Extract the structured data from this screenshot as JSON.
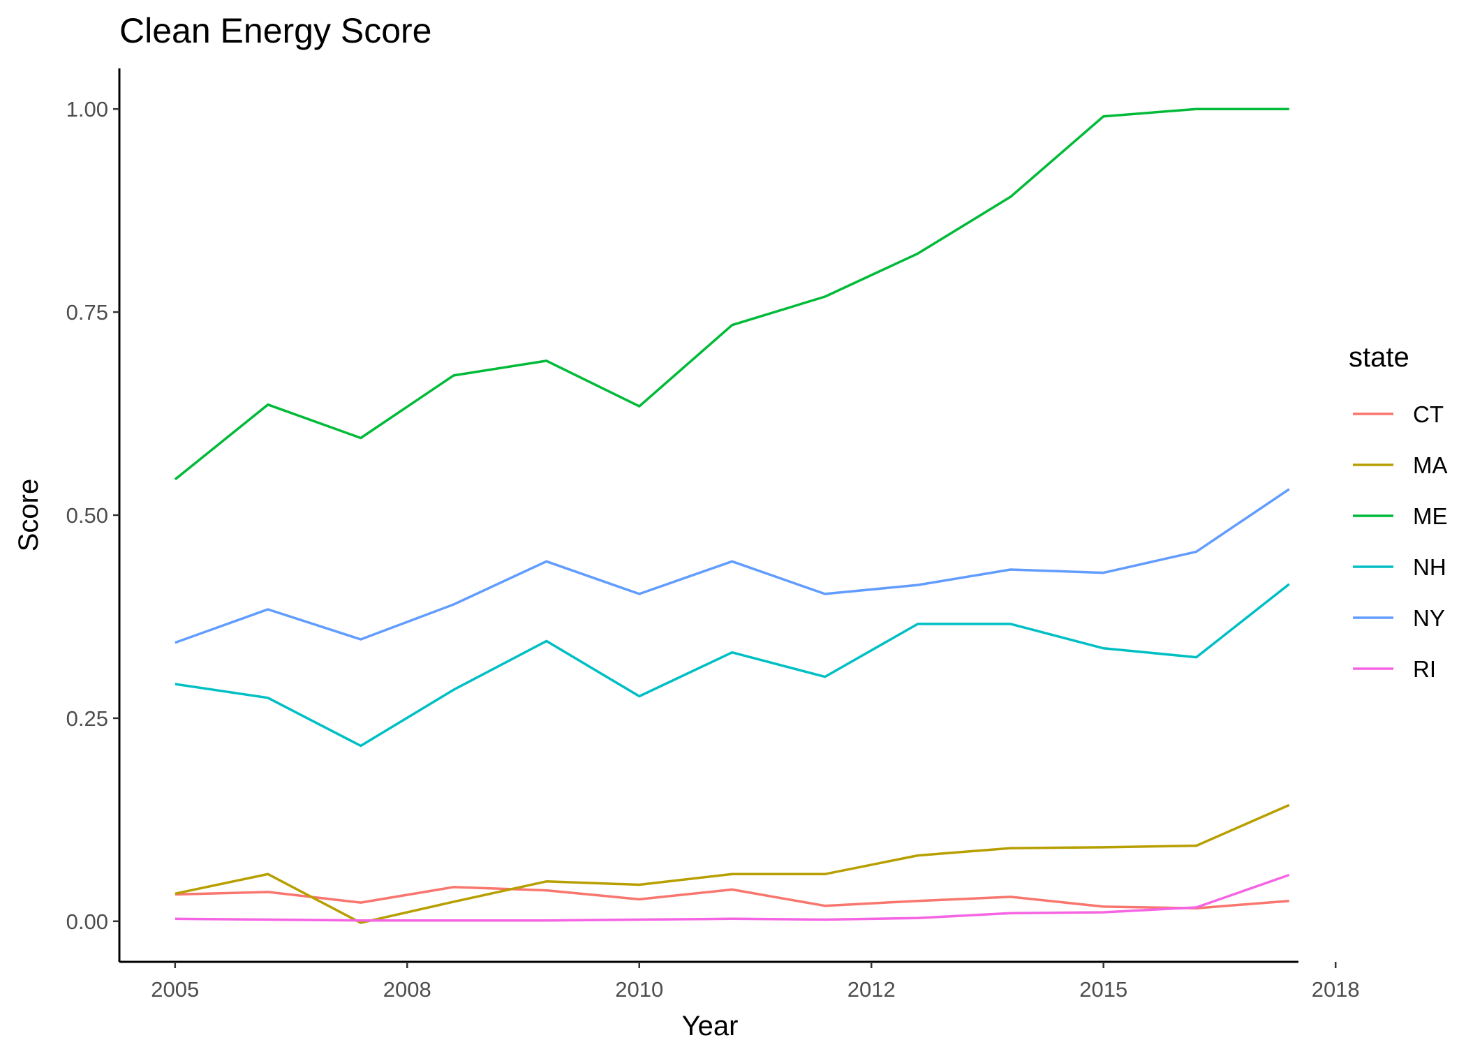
{
  "chart_data": {
    "type": "line",
    "title": "Clean Energy Score",
    "xlabel": "Year",
    "ylabel": "Score",
    "x": [
      2005,
      2006,
      2007,
      2008,
      2009,
      2010,
      2011,
      2012,
      2013,
      2014,
      2015,
      2016,
      2017
    ],
    "xlim": [
      2004.4,
      2017.1
    ],
    "ylim": [
      -0.05,
      1.05
    ],
    "xticks": [
      {
        "value": 2005,
        "label": "2005"
      },
      {
        "value": 2007.5,
        "label": "2008"
      },
      {
        "value": 2010,
        "label": "2010"
      },
      {
        "value": 2012.5,
        "label": "2012"
      },
      {
        "value": 2015,
        "label": "2015"
      },
      {
        "value": 2017.5,
        "label": "2018"
      }
    ],
    "yticks": [
      {
        "value": 0,
        "label": "0.00"
      },
      {
        "value": 0.25,
        "label": "0.25"
      },
      {
        "value": 0.5,
        "label": "0.50"
      },
      {
        "value": 0.75,
        "label": "0.75"
      },
      {
        "value": 1,
        "label": "1.00"
      }
    ],
    "grid": false,
    "legend": {
      "title": "state",
      "placement": "right"
    },
    "series": [
      {
        "name": "CT",
        "color": "#F8766D",
        "values": [
          0.033,
          0.036,
          0.023,
          0.042,
          0.038,
          0.027,
          0.039,
          0.019,
          0.025,
          0.03,
          0.018,
          0.016,
          0.025
        ]
      },
      {
        "name": "MA",
        "color": "#B79F00",
        "values": [
          0.034,
          0.058,
          -0.002,
          0.024,
          0.049,
          0.045,
          0.058,
          0.058,
          0.081,
          0.09,
          0.091,
          0.093,
          0.143
        ]
      },
      {
        "name": "ME",
        "color": "#00BA38",
        "values": [
          0.544,
          0.636,
          0.595,
          0.672,
          0.69,
          0.634,
          0.734,
          0.769,
          0.822,
          0.892,
          0.991,
          1.0,
          1.0
        ]
      },
      {
        "name": "NH",
        "color": "#00BFC4",
        "values": [
          0.292,
          0.275,
          0.216,
          0.285,
          0.345,
          0.277,
          0.331,
          0.301,
          0.366,
          0.366,
          0.336,
          0.325,
          0.415
        ]
      },
      {
        "name": "NY",
        "color": "#619CFF",
        "values": [
          0.343,
          0.384,
          0.347,
          0.39,
          0.443,
          0.403,
          0.443,
          0.403,
          0.414,
          0.433,
          0.429,
          0.455,
          0.532
        ]
      },
      {
        "name": "RI",
        "color": "#F564E3",
        "values": [
          0.003,
          0.002,
          0.001,
          0.001,
          0.001,
          0.002,
          0.003,
          0.002,
          0.004,
          0.01,
          0.011,
          0.017,
          0.057
        ]
      }
    ]
  }
}
